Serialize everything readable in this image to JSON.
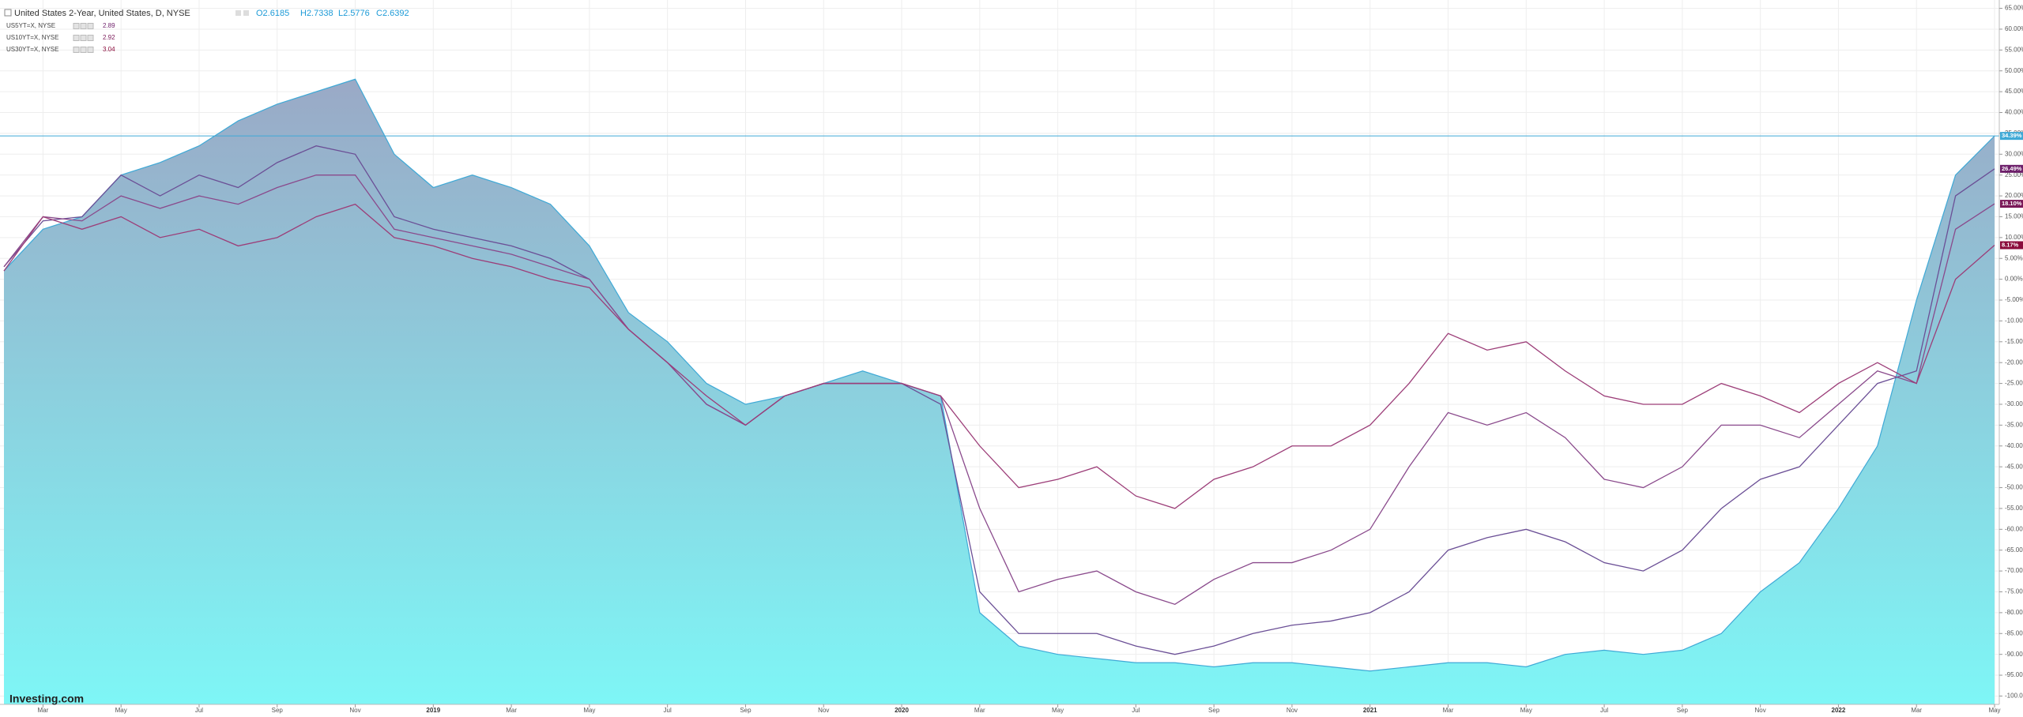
{
  "chart_data": {
    "type": "area-line",
    "header": {
      "open": "O2.6185",
      "high": "H2.7338",
      "low": "L2.5776",
      "close": "C2.6392"
    },
    "watermark": "Investing.com",
    "categories": [
      null,
      "Mar",
      null,
      "May",
      null,
      "Jul",
      null,
      "Sep",
      null,
      "Nov",
      null,
      "2019",
      null,
      "Mar",
      null,
      "May",
      null,
      "Jul",
      null,
      "Sep",
      null,
      "Nov",
      null,
      "2020",
      null,
      "Mar",
      null,
      "May",
      null,
      "Jul",
      null,
      "Sep",
      null,
      "Nov",
      null,
      "2021",
      null,
      "Mar",
      null,
      "May",
      null,
      "Jul",
      null,
      "Sep",
      null,
      "Nov",
      null,
      "2022",
      null,
      "Mar",
      null,
      "May"
    ],
    "series": [
      {
        "name": "United States 2-Year, United States, D, NYSE",
        "kind": "area",
        "color": "#3fa9d6",
        "fill_gradient": [
          "#9aa9c6",
          "#7ef6f6"
        ],
        "last_label": "34.39%",
        "values": [
          2,
          12,
          15,
          25,
          28,
          32,
          38,
          42,
          45,
          48,
          30,
          22,
          25,
          22,
          18,
          8,
          -8,
          -15,
          -25,
          -30,
          -28,
          -25,
          -22,
          -25,
          -28,
          -80,
          -88,
          -90,
          -91,
          -92,
          -92,
          -93,
          -92,
          -92,
          -93,
          -94,
          -93,
          -92,
          -92,
          -93,
          -90,
          -89,
          -90,
          -89,
          -85,
          -75,
          -68,
          -55,
          -40,
          -5,
          25,
          34.39
        ]
      },
      {
        "name": "US5YT=X, NYSE",
        "legend_value": "2.89",
        "kind": "line",
        "color": "#6b4f96",
        "badge_color": "#6d1f6a",
        "last_label": "26.49%",
        "values": [
          3,
          14,
          15,
          25,
          20,
          25,
          22,
          28,
          32,
          30,
          15,
          12,
          10,
          8,
          5,
          0,
          -12,
          -20,
          -30,
          -35,
          -28,
          -25,
          -25,
          -25,
          -30,
          -75,
          -85,
          -85,
          -85,
          -88,
          -90,
          -88,
          -85,
          -83,
          -82,
          -80,
          -75,
          -65,
          -62,
          -60,
          -63,
          -68,
          -70,
          -65,
          -55,
          -48,
          -45,
          -35,
          -25,
          -22,
          20,
          26.49
        ]
      },
      {
        "name": "US10YT=X, NYSE",
        "legend_value": "2.92",
        "kind": "line",
        "color": "#8a4a8c",
        "badge_color": "#7a1858",
        "last_label": "18.10%",
        "values": [
          3,
          15,
          14,
          20,
          17,
          20,
          18,
          22,
          25,
          25,
          12,
          10,
          8,
          6,
          3,
          0,
          -12,
          -20,
          -30,
          -35,
          -28,
          -25,
          -25,
          -25,
          -28,
          -55,
          -75,
          -72,
          -70,
          -75,
          -78,
          -72,
          -68,
          -68,
          -65,
          -60,
          -45,
          -32,
          -35,
          -32,
          -38,
          -48,
          -50,
          -45,
          -35,
          -35,
          -38,
          -30,
          -22,
          -25,
          12,
          18.1
        ]
      },
      {
        "name": "US30YT=X, NYSE",
        "legend_value": "3.04",
        "kind": "line",
        "color": "#9c3d78",
        "badge_color": "#8b0c3c",
        "last_label": "8.17%",
        "values": [
          2,
          15,
          12,
          15,
          10,
          12,
          8,
          10,
          15,
          18,
          10,
          8,
          5,
          3,
          0,
          -2,
          -12,
          -20,
          -28,
          -35,
          -28,
          -25,
          -25,
          -25,
          -28,
          -40,
          -50,
          -48,
          -45,
          -52,
          -55,
          -48,
          -45,
          -40,
          -40,
          -35,
          -25,
          -13,
          -17,
          -15,
          -22,
          -28,
          -30,
          -30,
          -25,
          -28,
          -32,
          -25,
          -20,
          -25,
          0,
          8.17
        ]
      }
    ],
    "ylim": [
      -102,
      67
    ],
    "yticks": [
      {
        "value": 65,
        "label": "65.00%"
      },
      {
        "value": 60,
        "label": "60.00%"
      },
      {
        "value": 55,
        "label": "55.00%"
      },
      {
        "value": 50,
        "label": "50.00%"
      },
      {
        "value": 45,
        "label": "45.00%"
      },
      {
        "value": 40,
        "label": "40.00%"
      },
      {
        "value": 35,
        "label": "35.00%"
      },
      {
        "value": 30,
        "label": "30.00%"
      },
      {
        "value": 25,
        "label": "25.00%"
      },
      {
        "value": 20,
        "label": "20.00%"
      },
      {
        "value": 15,
        "label": "15.00%"
      },
      {
        "value": 10,
        "label": "10.00%"
      },
      {
        "value": 5,
        "label": "5.00%"
      },
      {
        "value": 0,
        "label": "0.00%"
      },
      {
        "value": -5,
        "label": "-5.00%"
      },
      {
        "value": -10,
        "label": "-10.00%"
      },
      {
        "value": -15,
        "label": "-15.00%"
      },
      {
        "value": -20,
        "label": "-20.00%"
      },
      {
        "value": -25,
        "label": "-25.00%"
      },
      {
        "value": -30,
        "label": "-30.00%"
      },
      {
        "value": -35,
        "label": "-35.00%"
      },
      {
        "value": -40,
        "label": "-40.00%"
      },
      {
        "value": -45,
        "label": "-45.00%"
      },
      {
        "value": -50,
        "label": "-50.00%"
      },
      {
        "value": -55,
        "label": "-55.00%"
      },
      {
        "value": -60,
        "label": "-60.00%"
      },
      {
        "value": -65,
        "label": "-65.00%"
      },
      {
        "value": -70,
        "label": "-70.00%"
      },
      {
        "value": -75,
        "label": "-75.00%"
      },
      {
        "value": -80,
        "label": "-80.00%"
      },
      {
        "value": -85,
        "label": "-85.00%"
      },
      {
        "value": -90,
        "label": "-90.00%"
      },
      {
        "value": -95,
        "label": "-95.00%"
      },
      {
        "value": -100,
        "label": "-100.00%"
      }
    ],
    "grid": true
  }
}
